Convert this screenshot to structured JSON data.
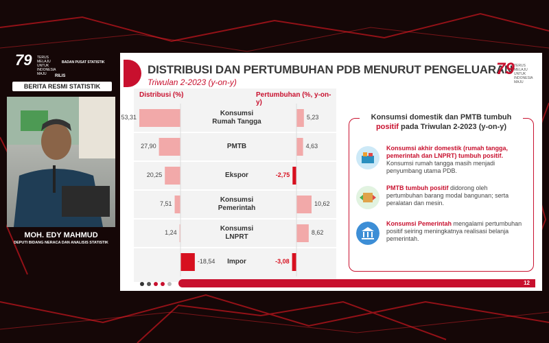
{
  "header": {
    "logo": "79",
    "tagline": "TERUS MELAJU UNTUK INDONESIA MAJU",
    "agency": "BADAN PUSAT STATISTIK",
    "kicker": "RILIS",
    "banner": "BERITA RESMI STATISTIK"
  },
  "presenter": {
    "name": "MOH. EDY MAHMUD",
    "role": "DEPUTI BIDANG NERACA DAN ANALISIS STATISTIK"
  },
  "slide": {
    "title": "DISTRIBUSI DAN PERTUMBUHAN PDB MENURUT PENGELUARAN",
    "subtitle": "Triwulan 2-2023 (y-on-y)",
    "logo": "79",
    "tagline": "TERUS MELAJU UNTUK INDONESIA MAJU",
    "page": 12
  },
  "chart_data": {
    "type": "bar",
    "orientation": "horizontal",
    "categories": [
      "Konsumsi Rumah Tangga",
      "PMTB",
      "Ekspor",
      "Konsumsi Pemerintah",
      "Konsumsi LNPRT",
      "Impor"
    ],
    "series": [
      {
        "name": "Distribusi (%)",
        "color": "#f2a9a9",
        "negative_color": "#d7101f",
        "direction": "left",
        "values": [
          53.31,
          27.9,
          20.25,
          7.51,
          1.24,
          -18.54
        ],
        "value_labels": [
          "53,31",
          "27,90",
          "20,25",
          "7,51",
          "1,24",
          "-18,54"
        ]
      },
      {
        "name": "Pertumbuhan (%, y-on-y)",
        "color": "#f2a9a9",
        "negative_color": "#d7101f",
        "direction": "right",
        "values": [
          5.23,
          4.63,
          -2.75,
          10.62,
          8.62,
          -3.08
        ],
        "value_labels": [
          "5,23",
          "4,63",
          "-2,75",
          "10,62",
          "8,62",
          "-3,08"
        ]
      }
    ]
  },
  "panel": {
    "heading": [
      "Konsumsi domestik dan PMTB tumbuh",
      "positif",
      "pada Triwulan 2-2023 (y-on-y)"
    ],
    "items": [
      {
        "highlight": "Konsumsi akhir domestik (rumah tangga, pemerintah dan LNPRT) tumbuh positif.",
        "text": "Konsumsi rumah tangga masih menjadi penyumbang utama PDB."
      },
      {
        "highlight": "PMTB tumbuh positif",
        "text": "didorong oleh pertumbuhan barang modal bangunan; serta peralatan dan mesin."
      },
      {
        "highlight": "Konsumsi Pemerintah",
        "text": "mengalami pertumbuhan positif seiring meningkatnya realisasi belanja pemerintah."
      }
    ]
  }
}
